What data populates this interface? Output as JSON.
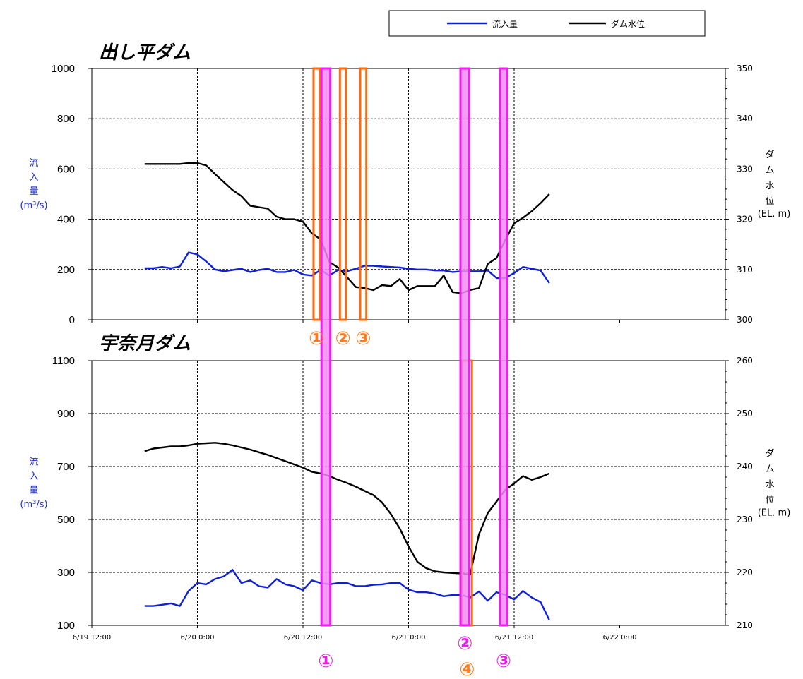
{
  "colors": {
    "inflow": "#0d1fd8",
    "level": "#000000",
    "orange_band": "#ff6a10",
    "magenta_band": "#f01ef0",
    "magenta_fill": "#f58af5",
    "ylabel_blue": "#1f2bd6"
  },
  "legend": {
    "inflow": "流入量",
    "level": "ダム水位"
  },
  "x_axis": {
    "range_hours": [
      0,
      72
    ],
    "ticks": [
      {
        "hour": 0,
        "label": "6/19 12:00"
      },
      {
        "hour": 12,
        "label": "6/20 0:00"
      },
      {
        "hour": 24,
        "label": "6/20 12:00"
      },
      {
        "hour": 36,
        "label": "6/21 0:00"
      },
      {
        "hour": 48,
        "label": "6/21 12:00"
      },
      {
        "hour": 60,
        "label": "6/22 0:00"
      }
    ],
    "display_ticks": [
      "6/19 12:00",
      "6/20 0:00",
      "6/20 12:00",
      "6/21 0:00",
      "6/21 12:00",
      "6/22 0:00"
    ]
  },
  "chart_data": [
    {
      "type": "line",
      "title": "出し平ダム",
      "ylabel_left": [
        "流",
        "入",
        "量",
        "(m³/s)"
      ],
      "ylabel_right": [
        "ダ",
        "ム",
        "水",
        "位",
        "(EL. m)"
      ],
      "ylim_left": [
        0,
        1000
      ],
      "ylim_right": [
        300,
        350
      ],
      "yticks_left": [
        "0",
        "200",
        "400",
        "600",
        "800",
        "1000"
      ],
      "yticks_right": [
        "300",
        "310",
        "320",
        "330",
        "340",
        "350"
      ],
      "series": [
        {
          "name": "流入量",
          "axis": "left",
          "x": [
            6,
            7,
            8,
            9,
            10,
            11,
            12,
            13,
            14,
            15,
            16,
            17,
            18,
            19,
            20,
            21,
            22,
            23,
            24,
            25,
            26,
            27,
            28,
            29,
            30,
            31,
            32,
            33,
            34,
            35,
            36,
            37,
            38,
            39,
            40,
            41,
            42,
            43,
            44,
            45,
            46,
            47,
            48,
            49,
            50,
            51,
            52
          ],
          "values": [
            205,
            205,
            210,
            205,
            212,
            268,
            260,
            232,
            200,
            193,
            198,
            203,
            190,
            198,
            203,
            190,
            190,
            198,
            180,
            176,
            198,
            176,
            198,
            193,
            203,
            215,
            215,
            212,
            210,
            208,
            203,
            200,
            200,
            196,
            196,
            190,
            193,
            193,
            193,
            196,
            166,
            166,
            186,
            210,
            203,
            196,
            146
          ]
        },
        {
          "name": "ダム水位",
          "axis": "right",
          "x": [
            6,
            7,
            8,
            9,
            10,
            11,
            12,
            13,
            14,
            15,
            16,
            17,
            18,
            19,
            20,
            21,
            22,
            23,
            24,
            25,
            26,
            27,
            28,
            29,
            30,
            31,
            32,
            33,
            34,
            35,
            36,
            37,
            38,
            39,
            40,
            41,
            42,
            43,
            44,
            45,
            46,
            47,
            48,
            49,
            50,
            51,
            52
          ],
          "values": [
            331.0,
            331.0,
            331.0,
            331.0,
            331.0,
            331.2,
            331.2,
            330.7,
            329.0,
            327.4,
            325.8,
            324.6,
            322.7,
            322.4,
            322.1,
            320.5,
            320.0,
            320.0,
            319.5,
            317.2,
            316.0,
            311.5,
            310.4,
            308.5,
            306.5,
            306.3,
            305.9,
            306.9,
            306.7,
            308.1,
            305.9,
            306.7,
            306.7,
            306.7,
            308.8,
            305.5,
            305.3,
            305.9,
            306.3,
            311.1,
            312.3,
            315.9,
            319.2,
            320.3,
            321.6,
            323.2,
            325.0
          ]
        }
      ]
    },
    {
      "type": "line",
      "title": "宇奈月ダム",
      "ylabel_left": [
        "流",
        "入",
        "量",
        "(m³/s)"
      ],
      "ylabel_right": [
        "ダ",
        "ム",
        "水",
        "位",
        "(EL. m)"
      ],
      "ylim_left": [
        100,
        1100
      ],
      "ylim_right": [
        210,
        260
      ],
      "yticks_left": [
        "100",
        "300",
        "500",
        "700",
        "900",
        "1100"
      ],
      "yticks_right": [
        "210",
        "220",
        "230",
        "240",
        "250",
        "260"
      ],
      "series": [
        {
          "name": "流入量",
          "axis": "left",
          "x": [
            6,
            7,
            8,
            9,
            10,
            11,
            12,
            13,
            14,
            15,
            16,
            17,
            18,
            19,
            20,
            21,
            22,
            23,
            24,
            25,
            26,
            27,
            28,
            29,
            30,
            31,
            32,
            33,
            34,
            35,
            36,
            37,
            38,
            39,
            40,
            41,
            42,
            43,
            44,
            45,
            46,
            47,
            48,
            49,
            50,
            51,
            52
          ],
          "values": [
            173,
            173,
            178,
            183,
            173,
            230,
            260,
            255,
            275,
            285,
            310,
            260,
            270,
            248,
            243,
            275,
            255,
            248,
            233,
            270,
            260,
            255,
            260,
            260,
            248,
            248,
            253,
            255,
            260,
            260,
            235,
            225,
            225,
            220,
            210,
            215,
            215,
            205,
            228,
            193,
            225,
            215,
            198,
            230,
            205,
            188,
            120
          ]
        },
        {
          "name": "ダム水位",
          "axis": "right",
          "x": [
            6,
            7,
            8,
            9,
            10,
            11,
            12,
            13,
            14,
            15,
            16,
            17,
            18,
            19,
            20,
            21,
            22,
            23,
            24,
            25,
            26,
            27,
            28,
            29,
            30,
            31,
            32,
            33,
            34,
            35,
            36,
            37,
            38,
            39,
            40,
            41,
            42,
            43,
            44,
            45,
            46,
            47,
            48,
            49,
            50,
            51,
            52
          ],
          "values": [
            242.9,
            243.4,
            243.6,
            243.8,
            243.8,
            244.0,
            244.3,
            244.4,
            244.5,
            244.3,
            244.0,
            243.6,
            243.2,
            242.7,
            242.2,
            241.6,
            241.0,
            240.4,
            239.8,
            239.0,
            238.7,
            238.2,
            237.5,
            236.9,
            236.2,
            235.4,
            234.6,
            233.2,
            231.0,
            228.3,
            224.9,
            222.0,
            220.8,
            220.2,
            220.0,
            219.9,
            219.8,
            219.6,
            227.2,
            231.2,
            233.4,
            235.6,
            236.8,
            238.2,
            237.5,
            238.0,
            238.7
          ]
        }
      ]
    }
  ],
  "operations": [
    {
      "label": "①",
      "color": "orange",
      "chart": 0,
      "x_range": [
        25.2,
        25.9
      ]
    },
    {
      "label": "②",
      "color": "orange",
      "chart": 0,
      "x_range": [
        28.2,
        28.9
      ]
    },
    {
      "label": "③",
      "color": "orange",
      "chart": 0,
      "x_range": [
        30.5,
        31.2
      ]
    },
    {
      "label": "④",
      "color": "orange",
      "chart": 1,
      "x_range": [
        42.1,
        43.2
      ]
    },
    {
      "label": "①",
      "color": "magenta",
      "span": "both",
      "x_range": [
        26.1,
        27.1
      ]
    },
    {
      "label": "②",
      "color": "magenta",
      "span": "both",
      "x_range": [
        41.9,
        42.9
      ]
    },
    {
      "label": "③",
      "color": "magenta",
      "span": "both",
      "x_range": [
        46.4,
        47.2
      ]
    }
  ]
}
